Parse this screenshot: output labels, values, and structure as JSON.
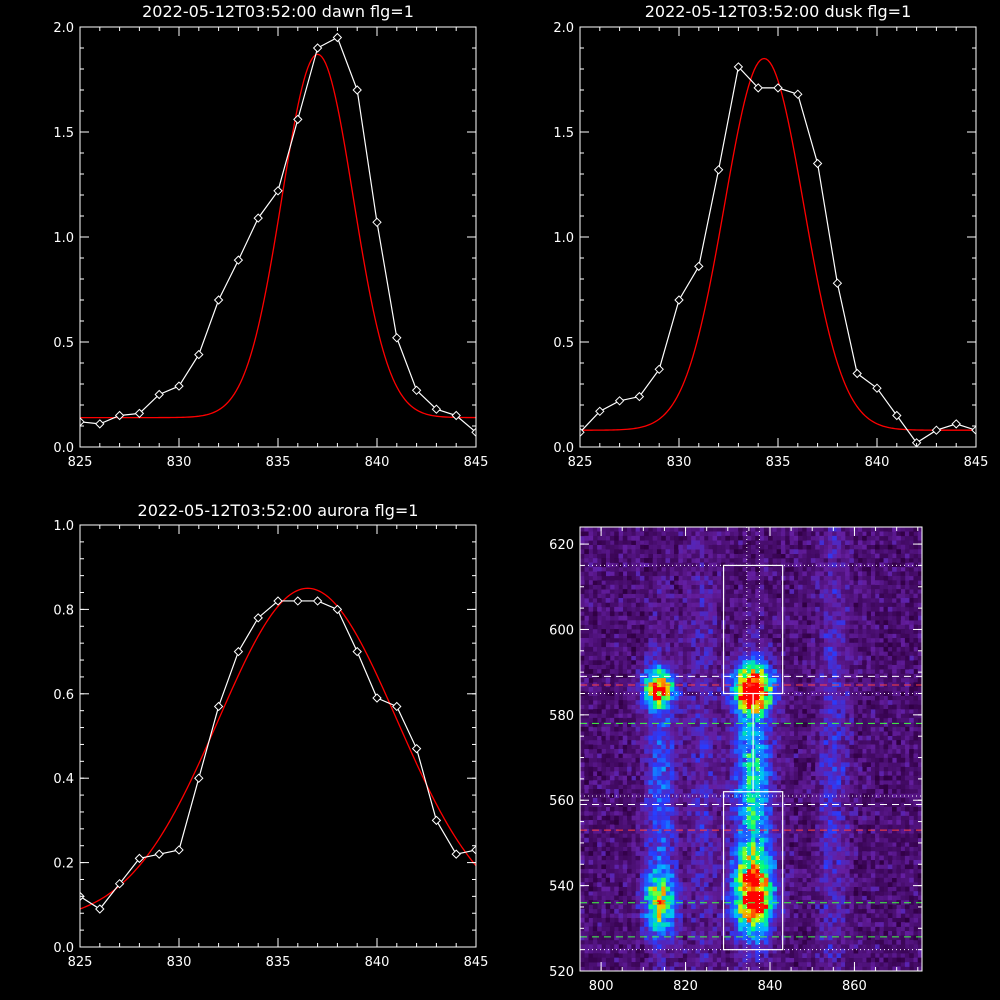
{
  "colors": {
    "background": "#000000",
    "axis": "#ffffff",
    "data": "#ffffff",
    "fit": "#ff0000"
  },
  "chart_data": [
    {
      "type": "line",
      "title": "2022-05-12T03:52:00 dawn flg=1",
      "xlim": [
        825,
        845
      ],
      "ylim": [
        0.0,
        2.0
      ],
      "xticks": [
        "825",
        "830",
        "835",
        "840",
        "845"
      ],
      "yticks": [
        "0.0",
        "0.5",
        "1.0",
        "1.5",
        "2.0"
      ],
      "series": [
        {
          "style": "markers",
          "color": "#ffffff",
          "x": [
            825,
            826,
            827,
            828,
            829,
            830,
            831,
            832,
            833,
            834,
            835,
            836,
            837,
            838,
            839,
            840,
            841,
            842,
            843,
            844,
            845
          ],
          "y": [
            0.12,
            0.11,
            0.15,
            0.16,
            0.25,
            0.29,
            0.44,
            0.7,
            0.89,
            1.09,
            1.22,
            1.56,
            1.9,
            1.95,
            1.7,
            1.07,
            0.52,
            0.27,
            0.18,
            0.15,
            0.07
          ]
        },
        {
          "style": "fit",
          "color": "#ff0000",
          "baseline": 0.14,
          "amplitude": 1.73,
          "center": 837.0,
          "sigma": 1.8
        }
      ]
    },
    {
      "type": "line",
      "title": "2022-05-12T03:52:00 dusk flg=1",
      "xlim": [
        825,
        845
      ],
      "ylim": [
        0.0,
        2.0
      ],
      "xticks": [
        "825",
        "830",
        "835",
        "840",
        "845"
      ],
      "yticks": [
        "0.0",
        "0.5",
        "1.0",
        "1.5",
        "2.0"
      ],
      "series": [
        {
          "style": "markers",
          "color": "#ffffff",
          "x": [
            825,
            826,
            827,
            828,
            829,
            830,
            831,
            832,
            833,
            834,
            835,
            836,
            837,
            838,
            839,
            840,
            841,
            842,
            843,
            844,
            845
          ],
          "y": [
            0.07,
            0.17,
            0.22,
            0.24,
            0.37,
            0.7,
            0.86,
            1.32,
            1.81,
            1.71,
            1.71,
            1.68,
            1.35,
            0.78,
            0.35,
            0.28,
            0.15,
            0.02,
            0.08,
            0.11,
            0.08
          ]
        },
        {
          "style": "fit",
          "color": "#ff0000",
          "baseline": 0.08,
          "amplitude": 1.77,
          "center": 834.3,
          "sigma": 2.0
        }
      ]
    },
    {
      "type": "line",
      "title": "2022-05-12T03:52:00 aurora flg=1",
      "xlim": [
        825,
        845
      ],
      "ylim": [
        0.0,
        1.0
      ],
      "xticks": [
        "825",
        "830",
        "835",
        "840",
        "845"
      ],
      "yticks": [
        "0.0",
        "0.2",
        "0.4",
        "0.6",
        "0.8",
        "1.0"
      ],
      "series": [
        {
          "style": "markers",
          "color": "#ffffff",
          "x": [
            825,
            826,
            827,
            828,
            829,
            830,
            831,
            832,
            833,
            834,
            835,
            836,
            837,
            838,
            839,
            840,
            841,
            842,
            843,
            844,
            845
          ],
          "y": [
            0.12,
            0.09,
            0.15,
            0.21,
            0.22,
            0.23,
            0.4,
            0.57,
            0.7,
            0.78,
            0.82,
            0.82,
            0.82,
            0.8,
            0.7,
            0.59,
            0.57,
            0.47,
            0.3,
            0.22,
            0.23
          ]
        },
        {
          "style": "fit",
          "color": "#ff0000",
          "baseline": 0.06,
          "amplitude": 0.79,
          "center": 836.5,
          "sigma": 4.5
        }
      ]
    },
    {
      "type": "heatmap",
      "title": "",
      "xlim": [
        795,
        876
      ],
      "ylim": [
        520,
        624
      ],
      "xticks": [
        "800",
        "820",
        "840",
        "860"
      ],
      "yticks": [
        "520",
        "540",
        "560",
        "580",
        "600",
        "620"
      ],
      "sources": [
        {
          "x": 813.5,
          "y": 586,
          "sx": 2.5,
          "sy": 3,
          "amp": 0.72
        },
        {
          "x": 814,
          "y": 536,
          "sx": 2.5,
          "sy": 5,
          "amp": 0.55
        },
        {
          "x": 836,
          "y": 586,
          "sx": 3,
          "sy": 3.5,
          "amp": 1.0
        },
        {
          "x": 836,
          "y": 538,
          "sx": 3,
          "sy": 6,
          "amp": 0.85
        },
        {
          "x": 838,
          "y": 535,
          "sx": 1.2,
          "sy": 1.5,
          "amp": 0.35
        },
        {
          "x": 836,
          "y": 562,
          "sx": 3,
          "sy": 18,
          "amp": 0.42
        },
        {
          "x": 814,
          "y": 562,
          "sx": 2.5,
          "sy": 22,
          "amp": 0.22
        },
        {
          "x": 855,
          "y": 570,
          "sx": 2.5,
          "sy": 40,
          "amp": 0.14
        },
        {
          "x": 824,
          "y": 570,
          "sx": 2.5,
          "sy": 40,
          "amp": 0.1
        }
      ],
      "boxes": [
        {
          "x0": 829,
          "x1": 843,
          "y0": 585,
          "y1": 615
        },
        {
          "x0": 829,
          "x1": 843,
          "y0": 525,
          "y1": 562
        }
      ],
      "vlines_dotted": [
        834.5,
        837.5
      ],
      "hlines": [
        {
          "y": 615,
          "color": "#ffffff",
          "style": "dotted"
        },
        {
          "y": 589,
          "color": "#ffffff",
          "style": "dashed"
        },
        {
          "y": 587,
          "color": "#ff4040",
          "style": "dashed"
        },
        {
          "y": 585,
          "color": "#ffffff",
          "style": "dotted"
        },
        {
          "y": 578,
          "color": "#40ff40",
          "style": "dashed"
        },
        {
          "y": 561,
          "color": "#ffffff",
          "style": "dotted"
        },
        {
          "y": 559,
          "color": "#ffffff",
          "style": "dashed"
        },
        {
          "y": 553,
          "color": "#ff4040",
          "style": "dashed"
        },
        {
          "y": 536,
          "color": "#40ff40",
          "style": "dashed"
        },
        {
          "y": 528,
          "color": "#40ff40",
          "style": "dashed"
        },
        {
          "y": 525,
          "color": "#ffffff",
          "style": "dotted"
        }
      ]
    }
  ]
}
